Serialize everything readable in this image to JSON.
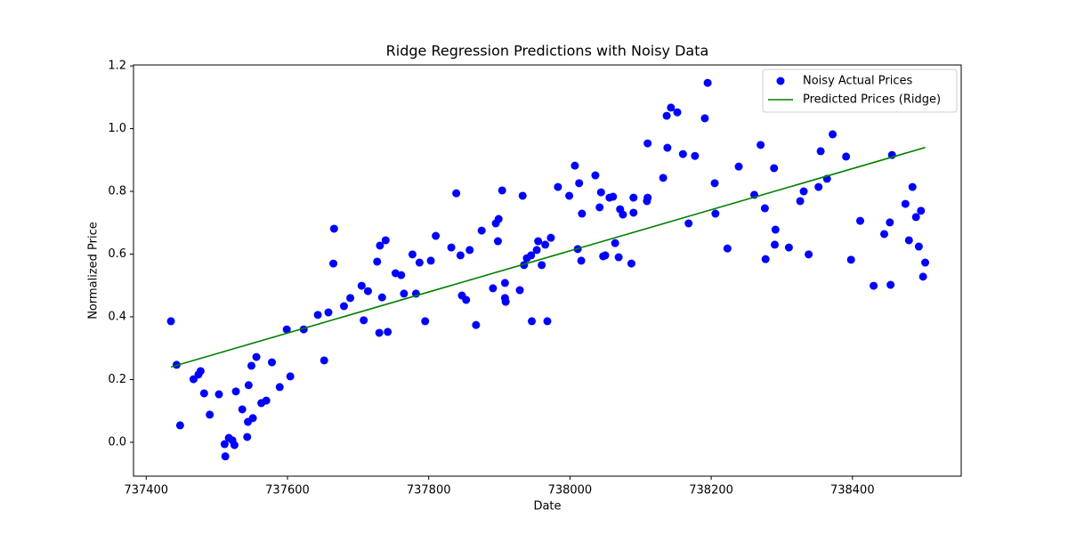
{
  "chart_data": {
    "type": "scatter",
    "title": "Ridge Regression Predictions with Noisy Data",
    "x_label": "Date",
    "y_label": "Normalized Price",
    "xlim": [
      737382,
      738554
    ],
    "ylim": [
      -0.108,
      1.203
    ],
    "xticks": [
      737400,
      737600,
      737800,
      738000,
      738200,
      738400
    ],
    "yticks": [
      {
        "value": 0,
        "label": "0.0"
      },
      0.2,
      0.4,
      0.6,
      0.8,
      {
        "value": 1,
        "label": "1.0"
      },
      1.2
    ],
    "legend": "upper right",
    "grid": false,
    "series": [
      {
        "name": "Noisy Actual Prices",
        "color": "#0000ff",
        "type": "scatter",
        "x": [
          737435,
          737443,
          737448,
          737467,
          737474,
          737477,
          737482,
          737490,
          737503,
          737511,
          737512,
          737517,
          737522,
          737525,
          737527,
          737536,
          737543,
          737544,
          737545,
          737549,
          737551,
          737556,
          737563,
          737570,
          737578,
          737589,
          737599,
          737604,
          737623,
          737643,
          737652,
          737658,
          737665,
          737666,
          737680,
          737689,
          737705,
          737708,
          737714,
          737727,
          737730,
          737731,
          737734,
          737739,
          737742,
          737753,
          737761,
          737765,
          737777,
          737782,
          737787,
          737795,
          737803,
          737810,
          737832,
          737839,
          737845,
          737847,
          737853,
          737858,
          737867,
          737875,
          737891,
          737895,
          737898,
          737899,
          737904,
          737908,
          737908,
          737909,
          737929,
          737933,
          737935,
          737939,
          737945,
          737946,
          737953,
          737955,
          737960,
          737965,
          737968,
          737973,
          737983,
          737999,
          738007,
          738011,
          738013,
          738016,
          738017,
          738036,
          738042,
          738044,
          738047,
          738050,
          738056,
          738061,
          738064,
          738069,
          738071,
          738075,
          738087,
          738090,
          738090,
          738109,
          738110,
          738110,
          738132,
          738137,
          738138,
          738143,
          738152,
          738160,
          738168,
          738177,
          738191,
          738195,
          738205,
          738206,
          738223,
          738239,
          738261,
          738270,
          738276,
          738277,
          738289,
          738291,
          738290,
          738310,
          738326,
          738331,
          738338,
          738352,
          738355,
          738364,
          738372,
          738391,
          738398,
          738411,
          738430,
          738445,
          738453,
          738454,
          738456,
          738475,
          738480,
          738485,
          738490,
          738494,
          738497,
          738500,
          738503
        ],
        "values": [
          0.386,
          0.247,
          0.054,
          0.201,
          0.216,
          0.227,
          0.156,
          0.088,
          0.153,
          -0.006,
          -0.045,
          0.014,
          0.006,
          -0.009,
          0.162,
          0.105,
          0.017,
          0.065,
          0.182,
          0.244,
          0.077,
          0.272,
          0.125,
          0.133,
          0.255,
          0.176,
          0.36,
          0.21,
          0.36,
          0.406,
          0.261,
          0.414,
          0.57,
          0.681,
          0.434,
          0.46,
          0.499,
          0.389,
          0.482,
          0.576,
          0.349,
          0.627,
          0.462,
          0.644,
          0.352,
          0.539,
          0.533,
          0.474,
          0.599,
          0.474,
          0.573,
          0.386,
          0.579,
          0.658,
          0.621,
          0.794,
          0.596,
          0.468,
          0.454,
          0.613,
          0.374,
          0.675,
          0.491,
          0.698,
          0.641,
          0.712,
          0.803,
          0.508,
          0.46,
          0.448,
          0.485,
          0.786,
          0.565,
          0.587,
          0.596,
          0.386,
          0.613,
          0.641,
          0.565,
          0.63,
          0.386,
          0.652,
          0.814,
          0.786,
          0.882,
          0.616,
          0.826,
          0.579,
          0.729,
          0.851,
          0.749,
          0.797,
          0.593,
          0.596,
          0.78,
          0.783,
          0.635,
          0.59,
          0.743,
          0.726,
          0.57,
          0.78,
          0.732,
          0.769,
          0.78,
          0.953,
          0.843,
          1.041,
          0.939,
          1.067,
          1.052,
          0.919,
          0.698,
          0.913,
          1.033,
          1.146,
          0.826,
          0.729,
          0.618,
          0.879,
          0.789,
          0.948,
          0.746,
          0.584,
          0.874,
          0.678,
          0.63,
          0.621,
          0.769,
          0.8,
          0.599,
          0.814,
          0.928,
          0.84,
          0.982,
          0.911,
          0.582,
          0.706,
          0.499,
          0.664,
          0.701,
          0.502,
          0.916,
          0.76,
          0.644,
          0.814,
          0.718,
          0.624,
          0.738,
          0.528,
          0.573
        ]
      },
      {
        "name": "Predicted Prices (Ridge)",
        "color": "#008000",
        "type": "line",
        "x": [
          737435,
          738503
        ],
        "values": [
          0.24,
          0.94
        ]
      }
    ]
  }
}
